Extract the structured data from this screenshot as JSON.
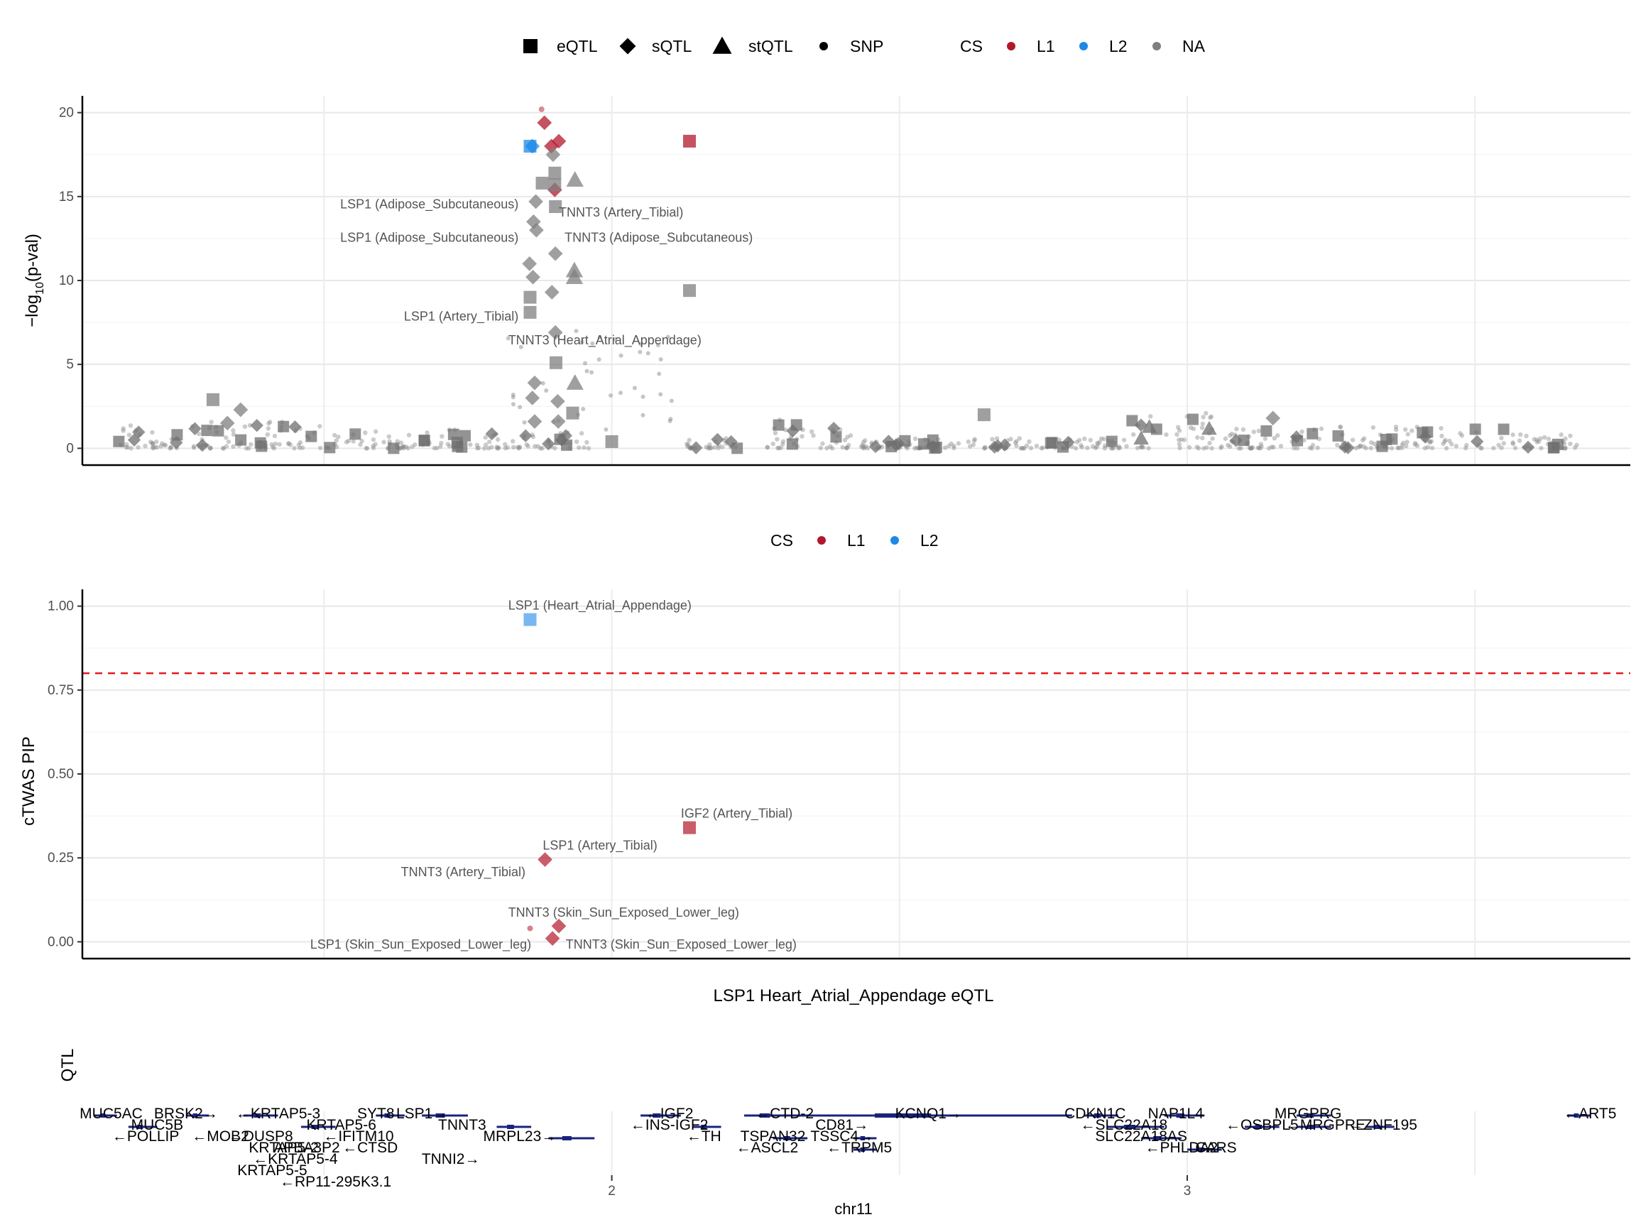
{
  "chart_data": [
    {
      "type": "scatter",
      "panel": "top",
      "ylabel": "−log10(p-val)",
      "ylabel_main": "−log",
      "ylabel_sub": "10",
      "ylabel_tail": "(p-val)",
      "ylim": [
        -1,
        21
      ],
      "xlim": [
        1.08,
        3.77
      ],
      "yticks": [
        0,
        5,
        10,
        15,
        20
      ],
      "xgrid_major": [
        1.5,
        2.0,
        2.5,
        3.0,
        3.5
      ],
      "legend": {
        "shapes": [
          {
            "shape": "square",
            "label": "eQTL"
          },
          {
            "shape": "diamond",
            "label": "sQTL"
          },
          {
            "shape": "triangle",
            "label": "stQTL"
          },
          {
            "shape": "dot",
            "label": "SNP"
          }
        ],
        "cs_title": "CS",
        "cs_items": [
          {
            "label": "L1",
            "color": "#b2182b"
          },
          {
            "label": "L2",
            "color": "#1e88e5"
          },
          {
            "label": "NA",
            "color": "#7f7f7f"
          }
        ]
      },
      "points": [
        {
          "x": 1.878,
          "y": 20.2,
          "shape": "dot",
          "cs": "L1"
        },
        {
          "x": 1.883,
          "y": 19.4,
          "shape": "diamond",
          "cs": "L1"
        },
        {
          "x": 1.908,
          "y": 18.3,
          "shape": "diamond",
          "cs": "L1"
        },
        {
          "x": 2.135,
          "y": 18.3,
          "shape": "square",
          "cs": "L1"
        },
        {
          "x": 1.895,
          "y": 18.0,
          "shape": "diamond",
          "cs": "L1"
        },
        {
          "x": 1.901,
          "y": 15.4,
          "shape": "diamond",
          "cs": "L1"
        },
        {
          "x": 1.858,
          "y": 18.0,
          "shape": "square",
          "cs": "L2"
        },
        {
          "x": 1.862,
          "y": 18.0,
          "shape": "diamond",
          "cs": "L2"
        },
        {
          "x": 1.898,
          "y": 17.5,
          "shape": "diamond",
          "cs": "NA"
        },
        {
          "x": 1.901,
          "y": 16.4,
          "shape": "square",
          "cs": "NA"
        },
        {
          "x": 1.901,
          "y": 15.7,
          "shape": "square",
          "cs": "NA"
        },
        {
          "x": 1.936,
          "y": 16.0,
          "shape": "triangle",
          "cs": "NA"
        },
        {
          "x": 1.879,
          "y": 15.8,
          "shape": "square",
          "cs": "NA"
        },
        {
          "x": 1.868,
          "y": 14.7,
          "shape": "diamond",
          "cs": "NA"
        },
        {
          "x": 1.902,
          "y": 14.4,
          "shape": "square",
          "cs": "NA"
        },
        {
          "x": 1.864,
          "y": 13.5,
          "shape": "diamond",
          "cs": "NA"
        },
        {
          "x": 1.869,
          "y": 13.0,
          "shape": "diamond",
          "cs": "NA"
        },
        {
          "x": 1.902,
          "y": 11.6,
          "shape": "diamond",
          "cs": "NA"
        },
        {
          "x": 1.857,
          "y": 11.0,
          "shape": "diamond",
          "cs": "NA"
        },
        {
          "x": 1.863,
          "y": 10.2,
          "shape": "diamond",
          "cs": "NA"
        },
        {
          "x": 1.935,
          "y": 10.6,
          "shape": "triangle",
          "cs": "NA"
        },
        {
          "x": 1.935,
          "y": 10.2,
          "shape": "triangle",
          "cs": "NA"
        },
        {
          "x": 2.135,
          "y": 9.4,
          "shape": "square",
          "cs": "NA"
        },
        {
          "x": 1.896,
          "y": 9.3,
          "shape": "diamond",
          "cs": "NA"
        },
        {
          "x": 1.858,
          "y": 9.0,
          "shape": "square",
          "cs": "NA"
        },
        {
          "x": 1.858,
          "y": 8.1,
          "shape": "square",
          "cs": "NA"
        },
        {
          "x": 1.902,
          "y": 6.9,
          "shape": "diamond",
          "cs": "NA"
        },
        {
          "x": 1.903,
          "y": 5.1,
          "shape": "square",
          "cs": "NA"
        },
        {
          "x": 1.936,
          "y": 3.9,
          "shape": "triangle",
          "cs": "NA"
        },
        {
          "x": 1.866,
          "y": 3.9,
          "shape": "diamond",
          "cs": "NA"
        },
        {
          "x": 1.862,
          "y": 3.0,
          "shape": "diamond",
          "cs": "NA"
        },
        {
          "x": 1.906,
          "y": 2.8,
          "shape": "diamond",
          "cs": "NA"
        },
        {
          "x": 1.932,
          "y": 2.1,
          "shape": "square",
          "cs": "NA"
        },
        {
          "x": 1.866,
          "y": 1.6,
          "shape": "diamond",
          "cs": "NA"
        },
        {
          "x": 1.907,
          "y": 1.6,
          "shape": "diamond",
          "cs": "NA"
        },
        {
          "x": 1.307,
          "y": 2.9,
          "shape": "square",
          "cs": "NA"
        },
        {
          "x": 1.355,
          "y": 2.3,
          "shape": "diamond",
          "cs": "NA"
        },
        {
          "x": 1.332,
          "y": 1.5,
          "shape": "diamond",
          "cs": "NA"
        },
        {
          "x": 2.647,
          "y": 2.0,
          "shape": "square",
          "cs": "NA"
        },
        {
          "x": 3.149,
          "y": 1.8,
          "shape": "diamond",
          "cs": "NA"
        },
        {
          "x": 2.0,
          "y": 0.4,
          "shape": "square",
          "cs": "NA"
        }
      ],
      "clusters": [
        {
          "x0": 1.14,
          "x1": 1.28,
          "ymax": 1.4,
          "tri": true
        },
        {
          "x0": 1.28,
          "x1": 1.55,
          "ymax": 1.6,
          "tri": false
        },
        {
          "x0": 1.55,
          "x1": 1.8,
          "ymax": 1.2,
          "tri": false
        },
        {
          "x0": 1.8,
          "x1": 1.96,
          "ymax": 1.0,
          "tri": false
        },
        {
          "x0": 2.12,
          "x1": 2.22,
          "ymax": 0.6,
          "tri": false
        },
        {
          "x0": 2.27,
          "x1": 2.42,
          "ymax": 1.8,
          "tri": false
        },
        {
          "x0": 2.43,
          "x1": 2.9,
          "ymax": 0.6,
          "tri": false
        },
        {
          "x0": 2.9,
          "x1": 3.08,
          "ymax": 2.2,
          "tri": true
        },
        {
          "x0": 3.08,
          "x1": 3.24,
          "ymax": 1.2,
          "tri": false
        },
        {
          "x0": 3.26,
          "x1": 3.57,
          "ymax": 1.3,
          "tri": false
        },
        {
          "x0": 3.57,
          "x1": 3.68,
          "ymax": 1.0,
          "tri": false
        }
      ],
      "annotations": [
        {
          "x": 1.838,
          "y": 14.3,
          "text": "LSP1 (Adipose_Subcutaneous)",
          "anchor": "end"
        },
        {
          "x": 1.908,
          "y": 13.8,
          "text": "TNNT3 (Artery_Tibial)",
          "anchor": "start"
        },
        {
          "x": 1.838,
          "y": 12.3,
          "text": "LSP1 (Adipose_Subcutaneous)",
          "anchor": "end"
        },
        {
          "x": 1.918,
          "y": 12.3,
          "text": "TNNT3 (Adipose_Subcutaneous)",
          "anchor": "start"
        },
        {
          "x": 1.838,
          "y": 7.6,
          "text": "LSP1 (Artery_Tibial)",
          "anchor": "end"
        },
        {
          "x": 1.82,
          "y": 6.2,
          "text": "TNNT3 (Heart_Atrial_Appendage)",
          "anchor": "start"
        }
      ]
    },
    {
      "type": "scatter",
      "panel": "middle",
      "ylabel": "cTWAS PIP",
      "xlabel": "LSP1 Heart_Atrial_Appendage eQTL",
      "ylim": [
        -0.05,
        1.05
      ],
      "xlim": [
        1.08,
        3.77
      ],
      "yticks": [
        "0.00",
        "0.25",
        "0.50",
        "0.75",
        "1.00"
      ],
      "threshold": 0.8,
      "legend": {
        "cs_title": "CS",
        "cs_items": [
          {
            "label": "L1",
            "color": "#b2182b"
          },
          {
            "label": "L2",
            "color": "#1e88e5"
          }
        ]
      },
      "points": [
        {
          "x": 1.858,
          "y": 0.96,
          "shape": "square",
          "cs": "L2",
          "label": "LSP1 (Heart_Atrial_Appendage)"
        },
        {
          "x": 2.135,
          "y": 0.34,
          "shape": "square",
          "cs": "L1",
          "label": "IGF2 (Artery_Tibial)"
        },
        {
          "x": 1.884,
          "y": 0.245,
          "shape": "diamond",
          "cs": "L1",
          "label": "LSP1 (Artery_Tibial)"
        },
        {
          "x": 1.908,
          "y": 0.047,
          "shape": "diamond",
          "cs": "L1",
          "label": "TNNT3 (Skin_Sun_Exposed_Lower_leg)"
        },
        {
          "x": 1.897,
          "y": 0.01,
          "shape": "diamond",
          "cs": "L1",
          "label": "TNNT3 (Skin_Sun_Exposed_Lower_leg)"
        },
        {
          "x": 1.858,
          "y": 0.04,
          "shape": "dot",
          "cs": "L1",
          "label": ""
        }
      ],
      "annotations": [
        {
          "x": 1.82,
          "y": 0.99,
          "text": "LSP1 (Heart_Atrial_Appendage)",
          "anchor": "start"
        },
        {
          "x": 2.12,
          "y": 0.37,
          "text": "IGF2 (Artery_Tibial)",
          "anchor": "start"
        },
        {
          "x": 1.88,
          "y": 0.275,
          "text": "LSP1 (Artery_Tibial)",
          "anchor": "start"
        },
        {
          "x": 1.85,
          "y": 0.195,
          "text": "TNNT3 (Artery_Tibial)",
          "anchor": "end"
        },
        {
          "x": 1.82,
          "y": 0.075,
          "text": "TNNT3 (Skin_Sun_Exposed_Lower_leg)",
          "anchor": "start"
        },
        {
          "x": 1.86,
          "y": -0.02,
          "text": "LSP1 (Skin_Sun_Exposed_Lower_leg)",
          "anchor": "end"
        },
        {
          "x": 1.92,
          "y": -0.02,
          "text": "TNNT3 (Skin_Sun_Exposed_Lower_leg)",
          "anchor": "start"
        }
      ]
    },
    {
      "type": "gene_track",
      "panel": "bottom",
      "ylabel": "QTL",
      "xlabel": "chr11",
      "xlim": [
        1.08,
        3.77
      ],
      "xticks": [
        2,
        3
      ],
      "xgrid_major": [
        1.5,
        2.0,
        2.5,
        3.0,
        3.5
      ],
      "genes": [
        {
          "x0": 1.1,
          "x1": 1.14,
          "row": 0,
          "label": "MUC5AC",
          "lx": 1.13
        },
        {
          "x0": 1.16,
          "x1": 1.21,
          "row": 1,
          "label": "MUC5B",
          "lx": 1.21
        },
        {
          "x0": 1.26,
          "x1": 1.3,
          "row": 0,
          "label": "BRSK2→",
          "lx": 1.26
        },
        {
          "x0": 1.36,
          "x1": 1.42,
          "row": 0,
          "label": "←KRTAP5-3",
          "lx": 1.42
        },
        {
          "x0": 1.46,
          "x1": 1.52,
          "row": 1,
          "label": "KRTAP5-6",
          "lx": 1.53
        },
        {
          "x0": 1.59,
          "x1": 1.64,
          "row": 0,
          "label": "SYT8",
          "lx": 1.59
        },
        {
          "x0": 1.67,
          "x1": 1.75,
          "row": 0,
          "label": "LSP1→",
          "lx": 1.67
        },
        {
          "x0": 1.8,
          "x1": 1.86,
          "row": 1,
          "label": "TNNT3",
          "lx": 1.74
        },
        {
          "x0": 1.89,
          "x1": 1.97,
          "row": 2,
          "label": "MRPL23→",
          "lx": 1.84
        },
        {
          "x0": 2.05,
          "x1": 2.12,
          "row": 0,
          "label": "←IGF2",
          "lx": 2.1
        },
        {
          "x0": 2.14,
          "x1": 2.19,
          "row": 1,
          "label": "←INS-IGF2",
          "lx": 2.1
        },
        {
          "x0": 2.23,
          "x1": 2.32,
          "row": 0,
          "label": "←CTD-2",
          "lx": 2.3
        },
        {
          "x0": 2.28,
          "x1": 2.34,
          "row": 2,
          "label": "TSPAN32",
          "lx": 2.28
        },
        {
          "x0": 2.31,
          "x1": 2.8,
          "row": 0,
          "label": "KCNQ1→",
          "lx": 2.55
        },
        {
          "x0": 2.42,
          "x1": 2.46,
          "row": 2,
          "label": "TSSC4→",
          "lx": 2.4
        },
        {
          "x0": 2.42,
          "x1": 2.46,
          "row": 3,
          "label": "←TRPM5",
          "lx": 2.43
        },
        {
          "x0": 2.82,
          "x1": 2.88,
          "row": 0,
          "label": "CDKN1C",
          "lx": 2.84
        },
        {
          "x0": 2.86,
          "x1": 2.96,
          "row": 1,
          "label": "←SLC22A18",
          "lx": 2.89
        },
        {
          "x0": 2.92,
          "x1": 2.99,
          "row": 2,
          "label": "SLC22A18AS",
          "lx": 2.92
        },
        {
          "x0": 2.96,
          "x1": 3.03,
          "row": 0,
          "label": "NAP1L4",
          "lx": 2.98
        },
        {
          "x0": 3.0,
          "x1": 3.06,
          "row": 3,
          "label": "CARS",
          "lx": 3.05
        },
        {
          "x0": 3.1,
          "x1": 3.16,
          "row": 1,
          "label": "←OSBPL5",
          "lx": 3.13
        },
        {
          "x0": 3.19,
          "x1": 3.25,
          "row": 0,
          "label": "MRGPRG",
          "lx": 3.21
        },
        {
          "x0": 3.19,
          "x1": 3.25,
          "row": 1,
          "label": "←MRGPRE",
          "lx": 3.24
        },
        {
          "x0": 3.31,
          "x1": 3.36,
          "row": 1,
          "label": "←ZNF195",
          "lx": 3.34
        },
        {
          "x0": 3.66,
          "x1": 3.7,
          "row": 0,
          "label": "←ART5",
          "lx": 3.7
        }
      ],
      "overlap_labels": [
        {
          "x": 1.19,
          "y": 2,
          "text": "←POLLIP"
        },
        {
          "x": 1.32,
          "y": 2,
          "text": "←MOB2"
        },
        {
          "x": 1.39,
          "y": 2,
          "text": "←DUSP8"
        },
        {
          "x": 1.43,
          "y": 3,
          "text": "KRTAP5-2"
        },
        {
          "x": 1.45,
          "y": 4,
          "text": "←KRTAP5-4"
        },
        {
          "x": 1.41,
          "y": 5,
          "text": "KRTAP5-5"
        },
        {
          "x": 1.47,
          "y": 3,
          "text": "APBA3P2"
        },
        {
          "x": 1.56,
          "y": 2,
          "text": "←IFITM10"
        },
        {
          "x": 1.58,
          "y": 3,
          "text": "←CTSD"
        },
        {
          "x": 1.72,
          "y": 4,
          "text": "TNNI2→"
        },
        {
          "x": 1.52,
          "y": 6,
          "text": "←RP11-295K3.1"
        },
        {
          "x": 2.16,
          "y": 2,
          "text": "←TH"
        },
        {
          "x": 2.27,
          "y": 3,
          "text": "←ASCL2"
        },
        {
          "x": 2.4,
          "y": 1,
          "text": "CD81→"
        },
        {
          "x": 2.99,
          "y": 3,
          "text": "←PHLDA2"
        }
      ]
    }
  ]
}
